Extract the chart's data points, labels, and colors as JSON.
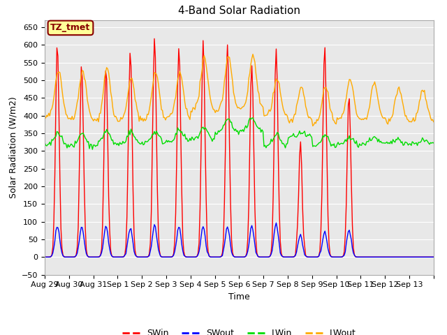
{
  "title": "4-Band Solar Radiation",
  "xlabel": "Time",
  "ylabel": "Solar Radiation (W/m2)",
  "ylim": [
    -50,
    670
  ],
  "yticks": [
    -50,
    0,
    50,
    100,
    150,
    200,
    250,
    300,
    350,
    400,
    450,
    500,
    550,
    600,
    650
  ],
  "colors": {
    "SWin": "#ff0000",
    "SWout": "#0000ff",
    "LWin": "#00dd00",
    "LWout": "#ffaa00"
  },
  "annotation_text": "TZ_tmet",
  "annotation_color": "#880000",
  "annotation_bg": "#ffff99",
  "fig_bg": "#ffffff",
  "plot_bg": "#e8e8e8",
  "grid_color": "#ffffff",
  "linewidth": 1.0,
  "title_fontsize": 11,
  "axis_label_fontsize": 9,
  "tick_fontsize": 8,
  "legend_fontsize": 9,
  "n_days": 16,
  "hours_per_day": 24,
  "day_peaks_SWin": [
    610,
    550,
    540,
    590,
    620,
    600,
    598,
    595,
    552,
    595,
    310,
    595,
    460,
    0,
    0,
    0
  ],
  "day_peaks_SWout": [
    88,
    87,
    85,
    82,
    88,
    87,
    87,
    85,
    88,
    95,
    62,
    72,
    76,
    0,
    0,
    0
  ],
  "lwin_base": [
    318,
    312,
    318,
    320,
    324,
    328,
    332,
    352,
    355,
    313,
    340,
    310,
    318,
    320,
    320,
    320
  ],
  "lwin_bump": [
    35,
    40,
    40,
    35,
    30,
    30,
    35,
    40,
    40,
    35,
    10,
    35,
    20,
    20,
    15,
    10
  ],
  "lwout_base": [
    395,
    390,
    385,
    385,
    388,
    395,
    415,
    415,
    420,
    400,
    385,
    375,
    390,
    388,
    385,
    385
  ],
  "lwout_peak": [
    525,
    525,
    535,
    505,
    520,
    520,
    560,
    570,
    570,
    500,
    480,
    485,
    500,
    490,
    480,
    470
  ],
  "tick_labels": [
    "Aug 29",
    "Aug 30",
    "Aug 31",
    "Sep 1",
    "Sep 2",
    "Sep 3",
    "Sep 4",
    "Sep 5",
    "Sep 6",
    "Sep 7",
    "Sep 8",
    "Sep 9",
    "Sep 10",
    "Sep 11",
    "Sep 12",
    "Sep 13",
    ""
  ]
}
